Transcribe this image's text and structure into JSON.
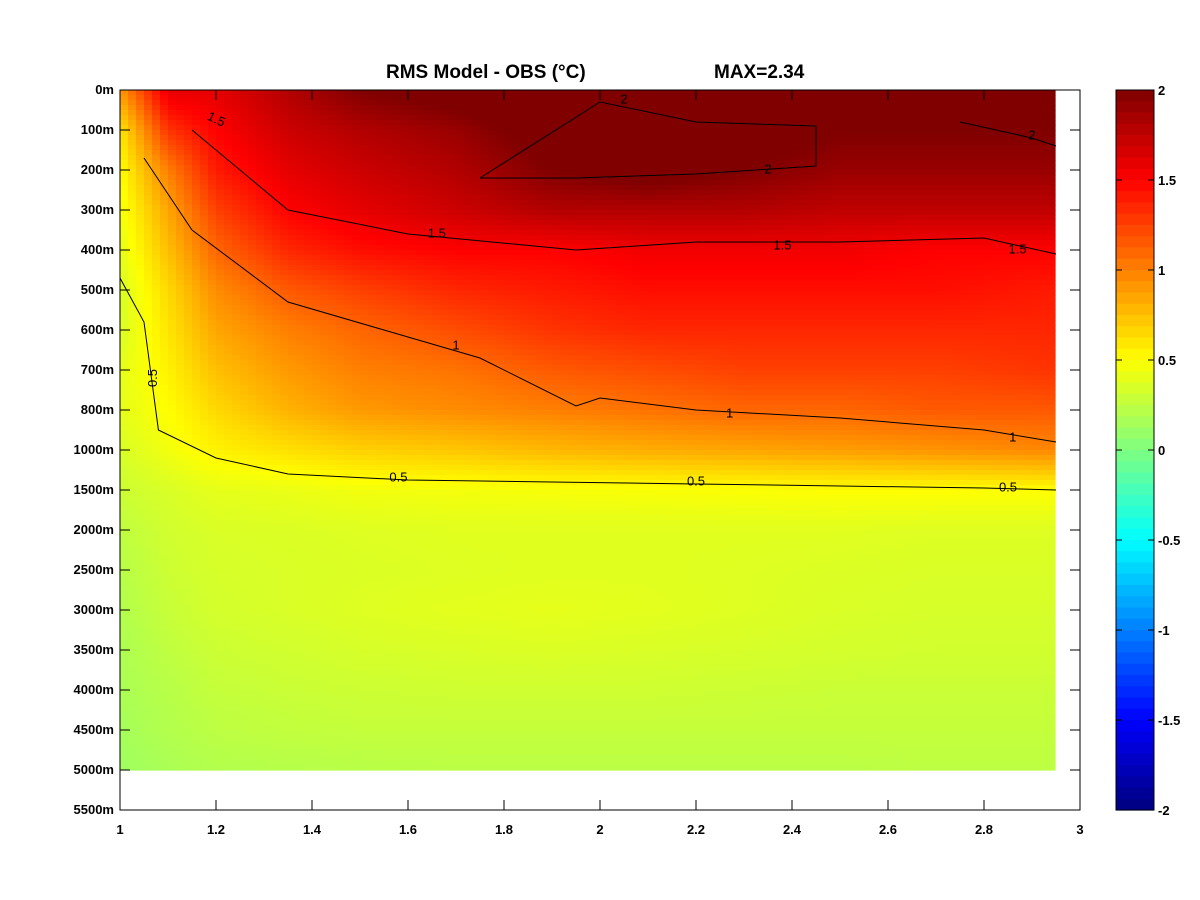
{
  "chart_data": {
    "type": "heatmap",
    "title": "RMS Model - OBS (°C)",
    "max_label": "MAX=2.34",
    "x_ticks": [
      "1",
      "1.2",
      "1.4",
      "1.6",
      "1.8",
      "2",
      "2.2",
      "2.4",
      "2.6",
      "2.8",
      "3"
    ],
    "x_tick_values": [
      1,
      1.2,
      1.4,
      1.6,
      1.8,
      2,
      2.2,
      2.4,
      2.6,
      2.8,
      3
    ],
    "xlim": [
      1,
      3
    ],
    "y_ticks": [
      "0m",
      "100m",
      "200m",
      "300m",
      "400m",
      "500m",
      "600m",
      "700m",
      "800m",
      "1000m",
      "1500m",
      "2000m",
      "2500m",
      "3000m",
      "3500m",
      "4000m",
      "4500m",
      "5000m",
      "5500m"
    ],
    "colorbar": {
      "ticks": [
        "2",
        "1.5",
        "1",
        "0.5",
        "0",
        "-0.5",
        "-1",
        "-1.5",
        "-2"
      ],
      "range": [
        -2,
        2
      ],
      "colormap": "jet"
    },
    "x": [
      1,
      1.1,
      1.2,
      1.35,
      1.5,
      1.7,
      1.9,
      2.1,
      2.3,
      2.5,
      2.7,
      2.95
    ],
    "depth_levels": [
      "0m",
      "100m",
      "200m",
      "300m",
      "400m",
      "500m",
      "600m",
      "700m",
      "800m",
      "1000m",
      "1500m",
      "2000m",
      "2500m",
      "3000m",
      "3500m",
      "4000m",
      "4500m",
      "5000m"
    ],
    "values": [
      [
        0.9,
        1.6,
        1.6,
        1.8,
        2.0,
        2.1,
        2.2,
        2.3,
        2.3,
        2.2,
        2.3,
        2.2
      ],
      [
        0.6,
        1.3,
        1.5,
        1.7,
        1.8,
        1.9,
        2.1,
        2.2,
        2.1,
        2.0,
        2.0,
        2.0
      ],
      [
        0.5,
        1.0,
        1.4,
        1.6,
        1.7,
        1.8,
        2.0,
        2.1,
        2.0,
        1.9,
        1.9,
        1.9
      ],
      [
        0.45,
        0.85,
        1.25,
        1.5,
        1.6,
        1.7,
        1.8,
        1.8,
        1.8,
        1.75,
        1.75,
        1.75
      ],
      [
        0.4,
        0.75,
        1.1,
        1.35,
        1.45,
        1.5,
        1.5,
        1.55,
        1.55,
        1.55,
        1.5,
        1.5
      ],
      [
        0.35,
        0.65,
        0.95,
        1.15,
        1.25,
        1.35,
        1.4,
        1.45,
        1.45,
        1.45,
        1.45,
        1.4
      ],
      [
        0.35,
        0.6,
        0.85,
        1.0,
        1.1,
        1.2,
        1.3,
        1.35,
        1.35,
        1.35,
        1.35,
        1.35
      ],
      [
        0.4,
        0.55,
        0.75,
        0.9,
        1.0,
        1.05,
        1.15,
        1.2,
        1.25,
        1.25,
        1.25,
        1.3
      ],
      [
        0.4,
        0.5,
        0.65,
        0.8,
        0.9,
        0.95,
        1.0,
        1.05,
        1.1,
        1.1,
        1.15,
        1.15
      ],
      [
        0.35,
        0.45,
        0.55,
        0.62,
        0.68,
        0.72,
        0.78,
        0.82,
        0.85,
        0.88,
        0.92,
        0.97
      ],
      [
        0.3,
        0.35,
        0.4,
        0.42,
        0.45,
        0.46,
        0.47,
        0.48,
        0.49,
        0.5,
        0.5,
        0.5
      ],
      [
        0.25,
        0.32,
        0.35,
        0.36,
        0.37,
        0.38,
        0.38,
        0.38,
        0.38,
        0.38,
        0.37,
        0.37
      ],
      [
        0.22,
        0.3,
        0.34,
        0.35,
        0.36,
        0.37,
        0.38,
        0.38,
        0.37,
        0.36,
        0.35,
        0.35
      ],
      [
        0.2,
        0.28,
        0.33,
        0.35,
        0.37,
        0.39,
        0.4,
        0.39,
        0.37,
        0.35,
        0.34,
        0.34
      ],
      [
        0.18,
        0.25,
        0.3,
        0.32,
        0.34,
        0.35,
        0.36,
        0.35,
        0.34,
        0.33,
        0.32,
        0.32
      ],
      [
        0.17,
        0.22,
        0.27,
        0.29,
        0.3,
        0.31,
        0.31,
        0.31,
        0.3,
        0.29,
        0.29,
        0.29
      ],
      [
        0.15,
        0.2,
        0.24,
        0.26,
        0.27,
        0.27,
        0.27,
        0.27,
        0.27,
        0.27,
        0.27,
        0.27
      ],
      [
        0.12,
        0.17,
        0.2,
        0.21,
        0.22,
        0.23,
        0.23,
        0.23,
        0.23,
        0.23,
        0.24,
        0.24
      ]
    ],
    "contours": [
      {
        "label": "0.5",
        "x": [
          1.0,
          1.05,
          1.08,
          1.2,
          1.35,
          1.6,
          1.9,
          2.2,
          2.5,
          2.8,
          2.95
        ],
        "depth_index": [
          4.7,
          5.8,
          8.5,
          9.2,
          9.6,
          9.75,
          9.8,
          9.85,
          9.9,
          9.95,
          10.0
        ]
      },
      {
        "label": "1",
        "x": [
          1.05,
          1.15,
          1.35,
          1.55,
          1.75,
          1.95,
          2.0,
          2.2,
          2.5,
          2.8,
          2.95
        ],
        "depth_index": [
          1.7,
          3.5,
          5.3,
          6.0,
          6.7,
          7.9,
          7.7,
          8.0,
          8.2,
          8.5,
          8.8
        ]
      },
      {
        "label": "1.5",
        "x": [
          1.15,
          1.35,
          1.6,
          1.95,
          2.2,
          2.5,
          2.8,
          2.95
        ],
        "depth_index": [
          1.0,
          3.0,
          3.6,
          4.0,
          3.8,
          3.8,
          3.7,
          4.1
        ]
      },
      {
        "label": "2",
        "x": [
          1.75,
          1.95,
          2.2,
          2.45,
          2.45,
          2.2,
          2.0,
          1.75
        ],
        "depth_index": [
          2.2,
          2.2,
          2.1,
          1.9,
          0.9,
          0.8,
          0.3,
          2.2
        ]
      },
      {
        "label": "2",
        "x": [
          2.75,
          2.9,
          2.95
        ],
        "depth_index": [
          0.8,
          1.2,
          1.4
        ]
      }
    ],
    "contour_labels": [
      {
        "text": "0.5",
        "x": 1.07,
        "depth_index": 7.2,
        "rotate": -90
      },
      {
        "text": "0.5",
        "x": 1.58,
        "depth_index": 9.7,
        "rotate": 0
      },
      {
        "text": "0.5",
        "x": 2.2,
        "depth_index": 9.8,
        "rotate": 0
      },
      {
        "text": "0.5",
        "x": 2.85,
        "depth_index": 9.95,
        "rotate": 0
      },
      {
        "text": "1",
        "x": 1.7,
        "depth_index": 6.4,
        "rotate": 0
      },
      {
        "text": "1",
        "x": 2.27,
        "depth_index": 8.1,
        "rotate": 0
      },
      {
        "text": "1",
        "x": 2.86,
        "depth_index": 8.7,
        "rotate": 0
      },
      {
        "text": "1.5",
        "x": 1.2,
        "depth_index": 0.75,
        "rotate": 25
      },
      {
        "text": "1.5",
        "x": 1.66,
        "depth_index": 3.6,
        "rotate": 0
      },
      {
        "text": "1.5",
        "x": 2.38,
        "depth_index": 3.9,
        "rotate": 0
      },
      {
        "text": "1.5",
        "x": 2.87,
        "depth_index": 4.0,
        "rotate": 0
      },
      {
        "text": "2",
        "x": 2.05,
        "depth_index": 0.25,
        "rotate": 0
      },
      {
        "text": "2",
        "x": 2.35,
        "depth_index": 2.0,
        "rotate": 0
      },
      {
        "text": "2",
        "x": 2.9,
        "depth_index": 1.15,
        "rotate": 0
      }
    ]
  }
}
